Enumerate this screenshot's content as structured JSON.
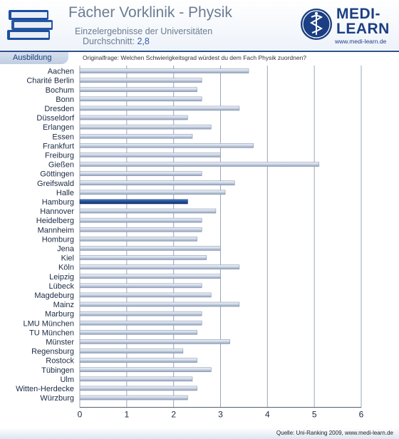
{
  "header": {
    "title": "Fächer Vorklinik - Physik",
    "subtitle": "Einzelergebnisse der Universitäten",
    "average_label": "Durchschnitt:",
    "average_value": "2,8"
  },
  "logo": {
    "line1": "MEDI-",
    "line2": "LEARN",
    "url": "www.medi-learn.de"
  },
  "section": {
    "label": "Ausbildung"
  },
  "question": "Originalfrage: Welchen Schwierigkeitsgrad würdest du dem Fach Physik zuordnen?",
  "source": "Quelle: Uni-Ranking 2009, www.medi-learn.de",
  "colors": {
    "bar": "#c9d3e3",
    "highlight_bar": "#1f4f9c",
    "brand": "#1b3f82"
  },
  "chart_data": {
    "type": "bar",
    "orientation": "horizontal",
    "categories": [
      "Aachen",
      "Charité Berlin",
      "Bochum",
      "Bonn",
      "Dresden",
      "Düsseldorf",
      "Erlangen",
      "Essen",
      "Frankfurt",
      "Freiburg",
      "Gießen",
      "Göttingen",
      "Greifswald",
      "Halle",
      "Hamburg",
      "Hannover",
      "Heidelberg",
      "Mannheim",
      "Homburg",
      "Jena",
      "Kiel",
      "Köln",
      "Leipzig",
      "Lübeck",
      "Magdeburg",
      "Mainz",
      "Marburg",
      "LMU München",
      "TU München",
      "Münster",
      "Regensburg",
      "Rostock",
      "Tübingen",
      "Ulm",
      "Witten-Herdecke",
      "Würzburg"
    ],
    "values": [
      3.6,
      2.6,
      2.5,
      2.6,
      3.4,
      2.3,
      2.8,
      2.4,
      3.7,
      3.0,
      5.1,
      2.6,
      3.3,
      3.1,
      2.3,
      2.9,
      2.6,
      2.6,
      2.5,
      3.0,
      2.7,
      3.4,
      3.0,
      2.6,
      2.8,
      3.4,
      2.6,
      2.6,
      2.5,
      3.2,
      2.2,
      2.5,
      2.8,
      2.4,
      2.5,
      2.3
    ],
    "highlight": "Hamburg",
    "xlim": [
      0,
      6
    ],
    "ticks": [
      "0",
      "1",
      "2",
      "3",
      "4",
      "5",
      "6"
    ],
    "grid": true
  }
}
